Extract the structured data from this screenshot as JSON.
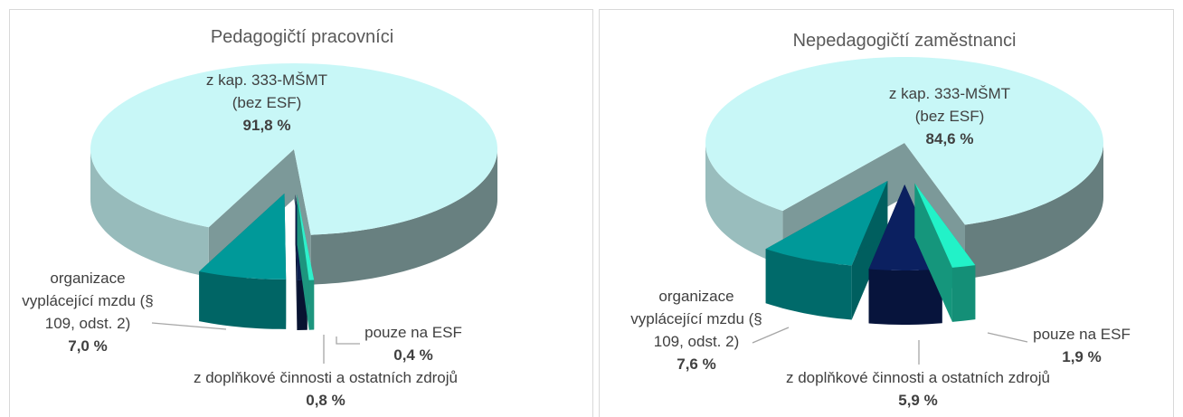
{
  "chart_data": [
    {
      "type": "pie",
      "title": "Pedagogičtí pracovníci",
      "categories": [
        "z kap. 333-MŠMT (bez ESF)",
        "organizace vyplácející mzdu (§ 109, odst. 2)",
        "z doplňkové činnosti a ostatních zdrojů",
        "pouze na ESF"
      ],
      "values": [
        91.8,
        7.0,
        0.8,
        0.4
      ],
      "value_labels": [
        "91,8 %",
        "7,0 %",
        "0,8 %",
        "0,4 %"
      ],
      "colors": [
        "#c8f7f7",
        "#009999",
        "#0c1f4e",
        "#2ff0cb"
      ]
    },
    {
      "type": "pie",
      "title": "Nepedagogičtí zaměstnanci",
      "categories": [
        "z kap. 333-MŠMT (bez ESF)",
        "organizace vyplácející mzdu (§ 109, odst. 2)",
        "z doplňkové činnosti a ostatních zdrojů",
        "pouze na ESF"
      ],
      "values": [
        84.6,
        7.6,
        5.9,
        1.9
      ],
      "value_labels": [
        "84,6 %",
        "7,6 %",
        "5,9 %",
        "1,9 %"
      ],
      "colors": [
        "#c8f7f7",
        "#009999",
        "#0b2060",
        "#22f2c8"
      ]
    }
  ]
}
